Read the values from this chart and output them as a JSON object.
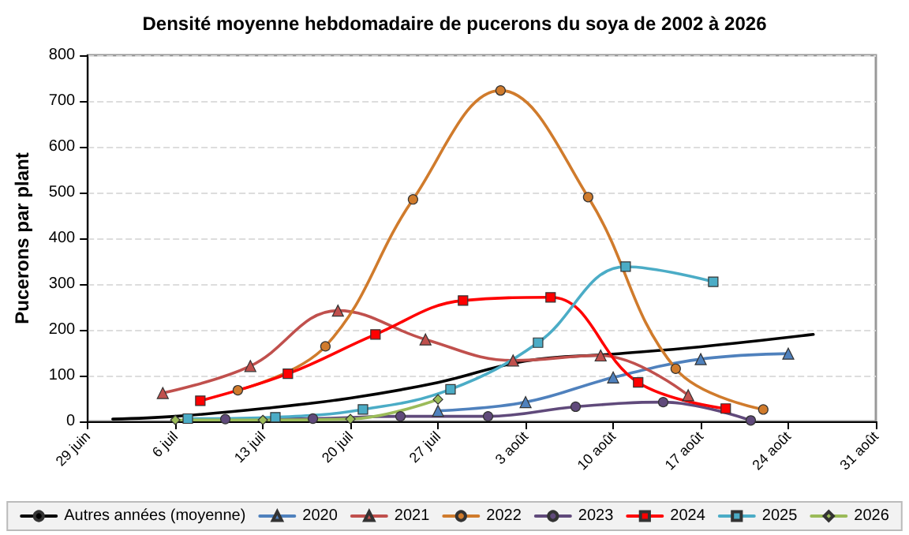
{
  "chart_data": {
    "type": "line",
    "title": "Densité moyenne hebdomadaire de pucerons du soya de 2002 à 2026",
    "ylabel": "Pucerons par plant",
    "xlim": [
      "--06-29",
      "--08-31"
    ],
    "xticks": [
      {
        "value": "--06-29",
        "label": "29 juin"
      },
      {
        "value": "--07-06",
        "label": "6 juil"
      },
      {
        "value": "--07-13",
        "label": "13 juil"
      },
      {
        "value": "--07-20",
        "label": "20 juil"
      },
      {
        "value": "--07-27",
        "label": "27 juil"
      },
      {
        "value": "--08-03",
        "label": "3 août"
      },
      {
        "value": "--08-10",
        "label": "10 août"
      },
      {
        "value": "--08-17",
        "label": "17 août"
      },
      {
        "value": "--08-24",
        "label": "24 août"
      },
      {
        "value": "--08-31",
        "label": "31 août"
      }
    ],
    "ylim": [
      0,
      800
    ],
    "yticks": [
      0,
      100,
      200,
      300,
      400,
      500,
      600,
      700,
      800
    ],
    "grid": "y",
    "legend": "bottom",
    "series": [
      {
        "name": "Autres années (moyenne)",
        "color": "#000000",
        "marker": "none",
        "x": [
          "--07-01",
          "--07-06",
          "--07-13",
          "--07-20",
          "--07-27",
          "--08-03",
          "--08-10",
          "--08-17",
          "--08-26"
        ],
        "values": [
          5,
          11,
          28,
          51,
          85,
          132,
          147,
          163,
          190
        ]
      },
      {
        "name": "2020",
        "color": "#4f81bd",
        "marker": "triangle",
        "x": [
          "--07-27",
          "--08-03",
          "--08-10",
          "--08-17",
          "--08-24"
        ],
        "values": [
          23,
          42,
          96,
          136,
          148
        ]
      },
      {
        "name": "2021",
        "color": "#c0504d",
        "marker": "triangle",
        "x": [
          "--07-05",
          "--07-12",
          "--07-19",
          "--07-26",
          "--08-02",
          "--08-09",
          "--08-16"
        ],
        "values": [
          62,
          121,
          242,
          179,
          133,
          144,
          57
        ]
      },
      {
        "name": "2022",
        "color": "#d07b2c",
        "marker": "circle",
        "x": [
          "--07-11",
          "--07-18",
          "--07-25",
          "--08-01",
          "--08-08",
          "--08-15",
          "--08-22"
        ],
        "values": [
          68,
          164,
          485,
          723,
          490,
          115,
          26
        ]
      },
      {
        "name": "2023",
        "color": "#604a7b",
        "marker": "circle",
        "x": [
          "--07-10",
          "--07-17",
          "--07-24",
          "--07-31",
          "--08-07",
          "--08-14",
          "--08-21"
        ],
        "values": [
          5,
          6,
          11,
          11,
          32,
          42,
          2
        ]
      },
      {
        "name": "2024",
        "color": "#ff0000",
        "marker": "square",
        "x": [
          "--07-08",
          "--07-15",
          "--07-22",
          "--07-29",
          "--08-05",
          "--08-12",
          "--08-19"
        ],
        "values": [
          45,
          104,
          190,
          264,
          271,
          85,
          28
        ]
      },
      {
        "name": "2025",
        "color": "#4bacc6",
        "marker": "square",
        "x": [
          "--07-07",
          "--07-14",
          "--07-21",
          "--07-28",
          "--08-04",
          "--08-11",
          "--08-18"
        ],
        "values": [
          6,
          9,
          26,
          70,
          172,
          338,
          305
        ]
      },
      {
        "name": "2026",
        "color": "#9bbb59",
        "marker": "diamond",
        "x": [
          "--07-06",
          "--07-13",
          "--07-20",
          "--07-27"
        ],
        "values": [
          3,
          3,
          5,
          48
        ]
      }
    ]
  }
}
